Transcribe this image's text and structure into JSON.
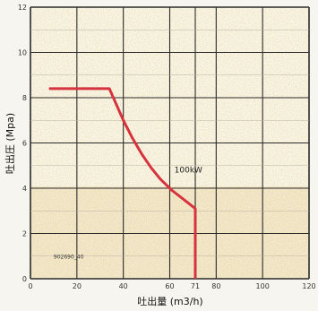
{
  "chart_data": {
    "type": "line",
    "title": "",
    "xlabel": "吐出量 (m3/h)",
    "ylabel": "吐出圧 (Mpa)",
    "xlim": [
      0,
      120
    ],
    "ylim": [
      0,
      12
    ],
    "x_ticks": [
      "0",
      "20",
      "40",
      "60",
      "71",
      "80",
      "100",
      "120"
    ],
    "y_ticks": [
      "0",
      "2",
      "4",
      "6",
      "8",
      "10",
      "12"
    ],
    "grid": true,
    "series": [
      {
        "color": "#d6333f",
        "x": [
          8,
          34,
          37,
          40,
          44,
          48,
          52,
          56,
          61,
          66,
          71,
          71
        ],
        "y": [
          8.4,
          8.4,
          7.7,
          7.0,
          6.2,
          5.5,
          4.9,
          4.4,
          3.9,
          3.5,
          3.1,
          0
        ]
      }
    ],
    "annotations": [
      {
        "text": "100kW",
        "x": 62,
        "y": 4.7
      },
      {
        "text": "902690_40",
        "x": 10,
        "y": 0.9
      }
    ]
  }
}
